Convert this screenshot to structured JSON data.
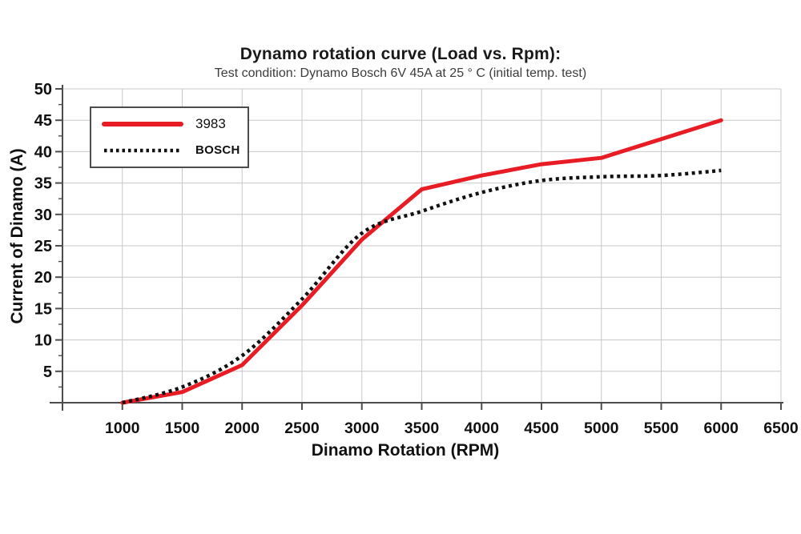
{
  "chart_data": {
    "type": "line",
    "title": "Dynamo rotation curve (Load vs. Rpm):",
    "subtitle": "Test condition: Dynamo Bosch 6V 45A at 25 ° C (initial temp. test)",
    "xlabel": "Dinamo Rotation (RPM)",
    "ylabel": "Current of Dinamo (A)",
    "xlim": [
      500,
      6500
    ],
    "ylim": [
      0,
      50
    ],
    "x_ticks": [
      1000,
      1500,
      2000,
      2500,
      3000,
      3500,
      4000,
      4500,
      5000,
      5500,
      6000,
      6500
    ],
    "y_ticks": [
      5,
      10,
      15,
      20,
      25,
      30,
      35,
      40,
      45,
      50
    ],
    "y_minor_step": 2.5,
    "grid": true,
    "legend_position": "top-left",
    "x": [
      1000,
      1500,
      2000,
      2500,
      3000,
      3500,
      4000,
      4500,
      5000,
      5500,
      6000
    ],
    "series": [
      {
        "name": "3983",
        "color": "#e81c24",
        "line_style": "solid",
        "smooth": false,
        "values": [
          0,
          1.7,
          6,
          15.5,
          26,
          34,
          36.2,
          38,
          39,
          42,
          45
        ]
      },
      {
        "name": "BOSCH",
        "color": "#111111",
        "line_style": "dotted",
        "smooth": true,
        "values": [
          0,
          2.5,
          7.5,
          16.5,
          27,
          30.5,
          33.5,
          35.4,
          36,
          36.2,
          37
        ]
      }
    ],
    "colors": {
      "grid": "#c8c8c8",
      "axis": "#4d4d4d",
      "tick_label": "#111111"
    }
  }
}
